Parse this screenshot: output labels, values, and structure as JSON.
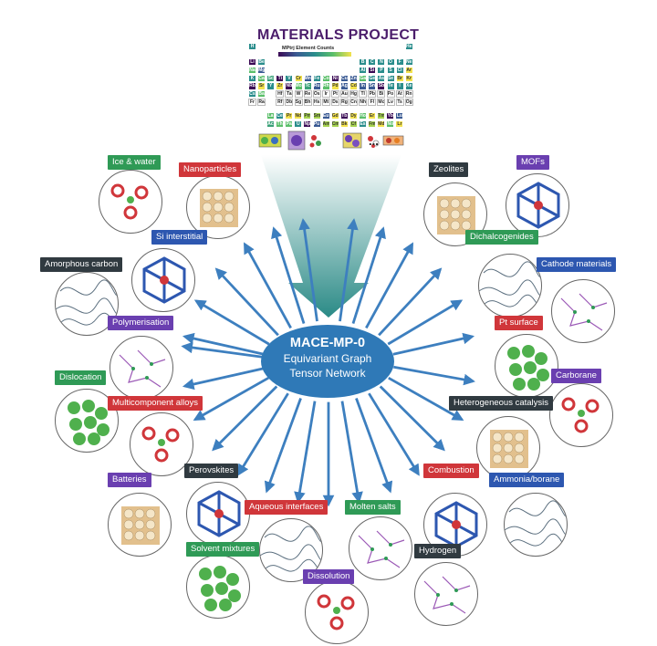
{
  "header": {
    "title": "MATERIALS PROJECT",
    "colorbar_title": "MPtrj Element Counts",
    "ellipsis": "..."
  },
  "hub": {
    "name": "MACE-MP-0",
    "line1": "Equivariant Graph",
    "line2": "Tensor Network",
    "color": "#2f79b7"
  },
  "periodic_table": [
    [
      "H",
      "",
      "",
      "",
      "",
      "",
      "",
      "",
      "",
      "",
      "",
      "",
      "",
      "",
      "",
      "",
      "",
      "He"
    ],
    [
      "Li",
      "Be",
      "",
      "",
      "",
      "",
      "",
      "",
      "",
      "",
      "",
      "",
      "B",
      "C",
      "N",
      "O",
      "F",
      "Ne"
    ],
    [
      "Na",
      "Mg",
      "",
      "",
      "",
      "",
      "",
      "",
      "",
      "",
      "",
      "",
      "Al",
      "Si",
      "P",
      "S",
      "Cl",
      "Ar"
    ],
    [
      "K",
      "Ca",
      "Sc",
      "Ti",
      "V",
      "Cr",
      "Mn",
      "Fe",
      "Co",
      "Ni",
      "Cu",
      "Zn",
      "Ga",
      "Ge",
      "As",
      "Se",
      "Br",
      "Kr"
    ],
    [
      "Rb",
      "Sr",
      "Y",
      "Zr",
      "Nb",
      "Mo",
      "Tc",
      "Ru",
      "Rh",
      "Pd",
      "Ag",
      "Cd",
      "In",
      "Sn",
      "Sb",
      "Te",
      "I",
      "Xe"
    ],
    [
      "Cs",
      "Ba",
      "",
      "Hf",
      "Ta",
      "W",
      "Re",
      "Os",
      "Ir",
      "Pt",
      "Au",
      "Hg",
      "Tl",
      "Pb",
      "Bi",
      "Po",
      "At",
      "Rn"
    ],
    [
      "Fr",
      "Ra",
      "",
      "Rf",
      "Db",
      "Sg",
      "Bh",
      "Hs",
      "Mt",
      "Ds",
      "Rg",
      "Cn",
      "Nh",
      "Fl",
      "Mc",
      "Lv",
      "Ts",
      "Og"
    ]
  ],
  "f_block": [
    [
      "La",
      "Ce",
      "Pr",
      "Nd",
      "Pm",
      "Sm",
      "Eu",
      "Gd",
      "Tb",
      "Dy",
      "Ho",
      "Er",
      "Tm",
      "Yb",
      "Lu"
    ],
    [
      "Ac",
      "Th",
      "Pa",
      "U",
      "Np",
      "Pu",
      "Am",
      "Cm",
      "Bk",
      "Cf",
      "Es",
      "Fm",
      "Md",
      "No",
      "Lr"
    ]
  ],
  "applications": [
    {
      "label": "Ice & water",
      "color": "green"
    },
    {
      "label": "Nanoparticles",
      "color": "red"
    },
    {
      "label": "Si interstitial",
      "color": "blue"
    },
    {
      "label": "Amorphous carbon",
      "color": "dark"
    },
    {
      "label": "Polymerisation",
      "color": "purple"
    },
    {
      "label": "Dislocation",
      "color": "green"
    },
    {
      "label": "Multicomponent alloys",
      "color": "red"
    },
    {
      "label": "Batteries",
      "color": "purple"
    },
    {
      "label": "Perovskites",
      "color": "dark"
    },
    {
      "label": "Aqueous interfaces",
      "color": "red"
    },
    {
      "label": "Molten salts",
      "color": "green"
    },
    {
      "label": "Solvent mixtures",
      "color": "green"
    },
    {
      "label": "Dissolution",
      "color": "purple"
    },
    {
      "label": "Zeolites",
      "color": "dark"
    },
    {
      "label": "MOFs",
      "color": "purple"
    },
    {
      "label": "Dichalcogenides",
      "color": "green"
    },
    {
      "label": "Cathode materials",
      "color": "blue"
    },
    {
      "label": "Pt surface",
      "color": "red"
    },
    {
      "label": "Carborane",
      "color": "purple"
    },
    {
      "label": "Heterogeneous catalysis",
      "color": "dark"
    },
    {
      "label": "Combustion",
      "color": "red"
    },
    {
      "label": "Ammonia/borane",
      "color": "blue"
    },
    {
      "label": "Hydrogen",
      "color": "dark"
    }
  ],
  "colors": {
    "arrow": "#3d7fbf",
    "funnel_top": "#ffffff",
    "funnel_bottom": "#2a8a86",
    "red": "#d0363a",
    "purple": "#6a3fb0",
    "green": "#2f9a56",
    "dark": "#303a40",
    "blue": "#2d57b0"
  }
}
